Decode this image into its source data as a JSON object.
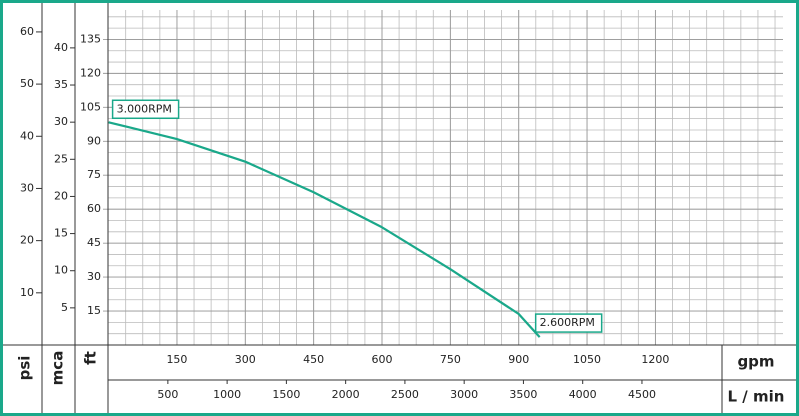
{
  "chart_data": {
    "type": "line",
    "x": [
      0,
      150,
      300,
      450,
      600,
      750,
      900,
      946
    ],
    "series": [
      {
        "color": "#1aa88a",
        "values": [
          98.4,
          91,
          81,
          67.5,
          52,
          33.5,
          13.7,
          3.5
        ]
      }
    ],
    "annotations": [
      "3.000RPM",
      "2.600RPM"
    ],
    "xlabel": "gpm",
    "xlim": [
      0,
      1480
    ],
    "xticks": [
      150,
      300,
      450,
      600,
      750,
      900,
      1050,
      1200
    ],
    "x2label": "L / min",
    "x2lim": [
      0,
      5690
    ],
    "x2ticks": [
      500,
      1000,
      1500,
      2000,
      2500,
      3000,
      3500,
      4000,
      4500
    ],
    "ylabel": "ft",
    "ylim": [
      0,
      148
    ],
    "yticks": [
      15,
      30,
      45,
      60,
      75,
      90,
      105,
      120,
      135
    ],
    "y2label": "mca",
    "y2lim": [
      0,
      45.1
    ],
    "y2ticks": [
      5,
      10,
      15,
      20,
      25,
      30,
      35,
      40
    ],
    "y3label": "psi",
    "y3lim": [
      0,
      64.2
    ],
    "y3ticks": [
      10,
      20,
      30,
      40,
      50,
      60
    ],
    "grid": true
  }
}
